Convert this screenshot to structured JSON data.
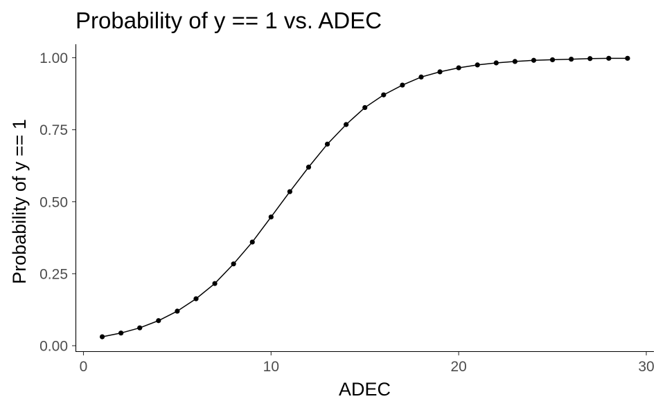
{
  "chart_data": {
    "type": "line",
    "title": "Probability of y == 1 vs. ADEC",
    "xlabel": "ADEC",
    "ylabel": "Probability of y == 1",
    "xlim": [
      0,
      30
    ],
    "ylim": [
      0,
      1
    ],
    "xticks": [
      0,
      10,
      20,
      30
    ],
    "xtick_labels": [
      "0",
      "10",
      "20",
      "30"
    ],
    "yticks": [
      0,
      0.25,
      0.5,
      0.75,
      1
    ],
    "ytick_labels": [
      "0.00",
      "0.25",
      "0.50",
      "0.75",
      "1.00"
    ],
    "grid": false,
    "series": [
      {
        "x": [
          1,
          2,
          3,
          4,
          5,
          6,
          7,
          8,
          9,
          10,
          11,
          12,
          13,
          14,
          15,
          16,
          17,
          18,
          19,
          20,
          21,
          22,
          23,
          24,
          25,
          26,
          27,
          28,
          29
        ],
        "y": [
          0.031,
          0.044,
          0.062,
          0.087,
          0.12,
          0.163,
          0.216,
          0.284,
          0.36,
          0.447,
          0.535,
          0.62,
          0.7,
          0.768,
          0.827,
          0.871,
          0.905,
          0.933,
          0.951,
          0.965,
          0.975,
          0.982,
          0.987,
          0.991,
          0.993,
          0.995,
          0.997,
          0.998,
          0.998
        ]
      }
    ]
  }
}
